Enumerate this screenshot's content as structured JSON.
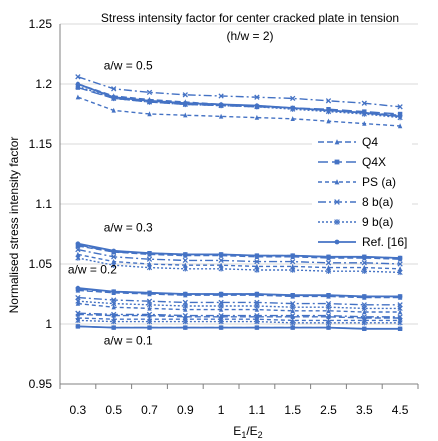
{
  "chart_data": {
    "type": "line",
    "title": "Stress intensity factor for center cracked plate in tension",
    "subtitle": "(h/w = 2)",
    "ylabel": "Normalised stress intensity factor",
    "xlabel_main": "E",
    "xlabel_sub1": "1",
    "xlabel_sep": "/E",
    "xlabel_sub2": "2",
    "ylim": [
      0.95,
      1.25
    ],
    "y_ticks": [
      "0.95",
      "1",
      "1.05",
      "1.1",
      "1.15",
      "1.2",
      "1.25"
    ],
    "y_tick_values": [
      0.95,
      1.0,
      1.05,
      1.1,
      1.15,
      1.2,
      1.25
    ],
    "categories": [
      "0.3",
      "0.5",
      "0.7",
      "0.9",
      "1",
      "1.1",
      "1.5",
      "2.5",
      "3.5",
      "4.5"
    ],
    "grid": "horizontal",
    "legend_position": "right",
    "colors": {
      "series": "#4472C4"
    },
    "legend": [
      {
        "name": "Q4",
        "dash": "6,3",
        "marker": "triangle"
      },
      {
        "name": "Q4X",
        "dash": "10,4",
        "marker": "square"
      },
      {
        "name": "PS (a)",
        "dash": "4,3",
        "marker": "triangle"
      },
      {
        "name": "8 b(a)",
        "dash": "8,3,2,3",
        "marker": "x"
      },
      {
        "name": "9 b(a)",
        "dash": "2,2",
        "marker": "star"
      },
      {
        "name": "Ref. [16]",
        "dash": "",
        "marker": "circle"
      }
    ],
    "annotations": [
      {
        "text": "a/w = 0.5",
        "x": "0.5",
        "y": 1.212
      },
      {
        "text": "a/w = 0.3",
        "x": "0.5",
        "y": 1.077
      },
      {
        "text": "a/w = 0.2",
        "x": "0.3",
        "y": 1.042
      },
      {
        "text": "a/w = 0.1",
        "x": "0.5",
        "y": 0.983
      }
    ],
    "groups": [
      {
        "label": "a/w = 0.5",
        "series": [
          {
            "name": "Q4",
            "values": [
              1.2,
              1.19,
              1.187,
              1.185,
              1.183,
              1.182,
              1.18,
              1.178,
              1.176,
              1.174
            ]
          },
          {
            "name": "Q4X",
            "values": [
              1.197,
              1.188,
              1.185,
              1.183,
              1.182,
              1.181,
              1.18,
              1.179,
              1.177,
              1.175
            ]
          },
          {
            "name": "PS (a)",
            "values": [
              1.189,
              1.178,
              1.175,
              1.174,
              1.173,
              1.172,
              1.171,
              1.169,
              1.167,
              1.165
            ]
          },
          {
            "name": "8 b(a)",
            "values": [
              1.206,
              1.196,
              1.193,
              1.191,
              1.19,
              1.189,
              1.188,
              1.186,
              1.184,
              1.181
            ]
          },
          {
            "name": "9 b(a)",
            "values": [
              1.198,
              1.188,
              1.185,
              1.183,
              1.182,
              1.181,
              1.179,
              1.177,
              1.175,
              1.172
            ]
          },
          {
            "name": "Ref. [16]",
            "values": [
              1.2,
              1.189,
              1.186,
              1.184,
              1.183,
              1.182,
              1.18,
              1.178,
              1.176,
              1.173
            ]
          }
        ]
      },
      {
        "label": "a/w = 0.3",
        "series": [
          {
            "name": "Q4",
            "values": [
              1.065,
              1.06,
              1.058,
              1.057,
              1.057,
              1.056,
              1.056,
              1.055,
              1.055,
              1.054
            ]
          },
          {
            "name": "Q4X",
            "values": [
              1.066,
              1.06,
              1.059,
              1.058,
              1.058,
              1.057,
              1.057,
              1.056,
              1.056,
              1.055
            ]
          },
          {
            "name": "PS (a)",
            "values": [
              1.058,
              1.052,
              1.05,
              1.049,
              1.049,
              1.048,
              1.048,
              1.047,
              1.047,
              1.046
            ]
          },
          {
            "name": "8 b(a)",
            "values": [
              1.062,
              1.056,
              1.054,
              1.053,
              1.053,
              1.052,
              1.052,
              1.051,
              1.051,
              1.05
            ]
          },
          {
            "name": "9 b(a)",
            "values": [
              1.055,
              1.049,
              1.047,
              1.046,
              1.046,
              1.045,
              1.045,
              1.044,
              1.044,
              1.043
            ]
          },
          {
            "name": "Ref. [16]",
            "values": [
              1.067,
              1.061,
              1.059,
              1.058,
              1.058,
              1.057,
              1.057,
              1.056,
              1.056,
              1.055
            ]
          }
        ]
      },
      {
        "label": "a/w = 0.2",
        "series": [
          {
            "name": "Q4",
            "values": [
              1.028,
              1.026,
              1.025,
              1.024,
              1.024,
              1.024,
              1.023,
              1.023,
              1.022,
              1.022
            ]
          },
          {
            "name": "Q4X",
            "values": [
              1.029,
              1.027,
              1.026,
              1.025,
              1.025,
              1.025,
              1.024,
              1.024,
              1.023,
              1.023
            ]
          },
          {
            "name": "PS (a)",
            "values": [
              1.017,
              1.014,
              1.013,
              1.012,
              1.012,
              1.012,
              1.011,
              1.011,
              1.01,
              1.01
            ]
          },
          {
            "name": "8 b(a)",
            "values": [
              1.022,
              1.02,
              1.019,
              1.018,
              1.018,
              1.018,
              1.017,
              1.017,
              1.016,
              1.016
            ]
          },
          {
            "name": "9 b(a)",
            "values": [
              1.019,
              1.017,
              1.016,
              1.015,
              1.015,
              1.015,
              1.014,
              1.014,
              1.013,
              1.013
            ]
          },
          {
            "name": "Ref. [16]",
            "values": [
              1.03,
              1.027,
              1.026,
              1.025,
              1.025,
              1.025,
              1.024,
              1.024,
              1.023,
              1.023
            ]
          }
        ]
      },
      {
        "label": "a/w = 0.1",
        "series": [
          {
            "name": "Q4",
            "values": [
              1.008,
              1.007,
              1.007,
              1.006,
              1.006,
              1.006,
              1.006,
              1.006,
              1.005,
              1.005
            ]
          },
          {
            "name": "Q4X",
            "values": [
              0.998,
              0.997,
              0.997,
              0.997,
              0.997,
              0.997,
              0.997,
              0.997,
              0.996,
              0.996
            ]
          },
          {
            "name": "PS (a)",
            "values": [
              1.005,
              1.004,
              1.004,
              1.004,
              1.004,
              1.004,
              1.003,
              1.003,
              1.003,
              1.003
            ]
          },
          {
            "name": "8 b(a)",
            "values": [
              1.009,
              1.008,
              1.008,
              1.007,
              1.007,
              1.007,
              1.007,
              1.007,
              1.006,
              1.006
            ]
          },
          {
            "name": "9 b(a)",
            "values": [
              1.003,
              1.002,
              1.002,
              1.002,
              1.002,
              1.002,
              1.001,
              1.001,
              1.001,
              1.001
            ]
          },
          {
            "name": "Ref. [16]",
            "values": [
              0.998,
              0.997,
              0.997,
              0.997,
              0.997,
              0.997,
              0.997,
              0.997,
              0.996,
              0.996
            ]
          }
        ]
      }
    ]
  }
}
